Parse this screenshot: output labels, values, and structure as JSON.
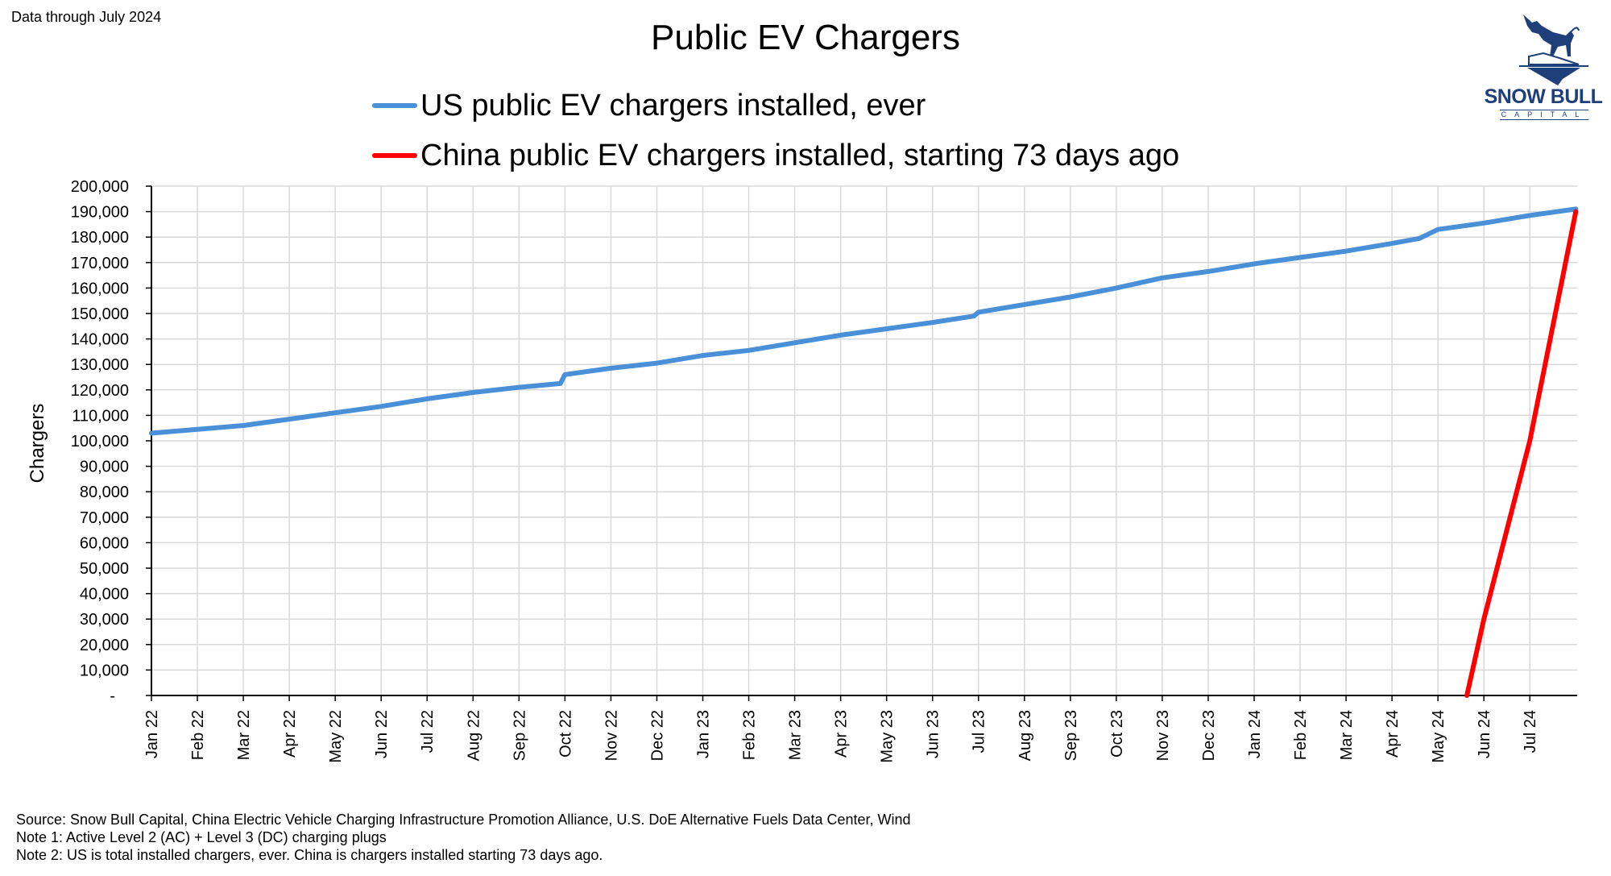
{
  "header": {
    "note": "Data through July 2024",
    "logo_name": "SNOW BULL",
    "logo_sub": "CAPITAL"
  },
  "footer": {
    "source": "Source: Snow Bull Capital, China Electric Vehicle Charging Infrastructure Promotion Alliance, U.S. DoE Alternative Fuels Data Center, Wind",
    "note1": "Note 1: Active Level 2 (AC) + Level 3 (DC) charging plugs",
    "note2": "Note 2: US is total installed chargers, ever. China is chargers installed starting 73 days ago."
  },
  "colors": {
    "us": "#4a90d9",
    "china": "#ff0000",
    "grid": "#d9d9d9",
    "logo": "#1f3f7a"
  },
  "chart_data": {
    "type": "line",
    "title": "Public EV Chargers",
    "xlabel": "",
    "ylabel": "Chargers",
    "ylim": [
      0,
      200000
    ],
    "yticks": [
      0,
      10000,
      20000,
      30000,
      40000,
      50000,
      60000,
      70000,
      80000,
      90000,
      100000,
      110000,
      120000,
      130000,
      140000,
      150000,
      160000,
      170000,
      180000,
      190000,
      200000
    ],
    "ytick_labels": [
      "-",
      "10,000",
      "20,000",
      "30,000",
      "40,000",
      "50,000",
      "60,000",
      "70,000",
      "80,000",
      "90,000",
      "100,000",
      "110,000",
      "120,000",
      "130,000",
      "140,000",
      "150,000",
      "160,000",
      "170,000",
      "180,000",
      "190,000",
      "200,000"
    ],
    "x_unit": "months since Jan 2022",
    "xlim": [
      0,
      31
    ],
    "categories": [
      "Jan 22",
      "Feb 22",
      "Mar 22",
      "Apr 22",
      "May 22",
      "Jun 22",
      "Jul 22",
      "Aug 22",
      "Sep 22",
      "Oct 22",
      "Nov 22",
      "Dec 22",
      "Jan 23",
      "Feb 23",
      "Mar 23",
      "Apr 23",
      "May 23",
      "Jun 23",
      "Jul 23",
      "Aug 23",
      "Sep 23",
      "Oct 23",
      "Nov 23",
      "Dec 23",
      "Jan 24",
      "Feb 24",
      "Mar 24",
      "Apr 24",
      "May 24",
      "Jun 24",
      "Jul 24"
    ],
    "grid": true,
    "legend": "top-center",
    "series": [
      {
        "name": "US public EV chargers installed, ever",
        "color": "#4a90d9",
        "x": [
          0,
          1,
          2,
          3,
          4,
          5,
          6,
          7,
          8,
          8.9,
          9.0,
          10,
          11,
          12,
          13,
          14,
          15,
          16,
          17,
          17.9,
          18.0,
          19,
          20,
          21,
          22,
          23,
          24,
          25,
          26,
          27,
          27.6,
          28,
          29,
          30,
          31
        ],
        "values": [
          103000,
          104500,
          106000,
          108500,
          111000,
          113500,
          116500,
          119000,
          121000,
          122500,
          126000,
          128500,
          130500,
          133500,
          135500,
          138500,
          141500,
          144000,
          146500,
          149000,
          150500,
          153500,
          156500,
          160000,
          164000,
          166500,
          169500,
          172000,
          174500,
          177500,
          179500,
          183000,
          185500,
          188500,
          191000
        ]
      },
      {
        "name": "China public EV chargers installed, starting 73 days ago",
        "color": "#ff0000",
        "x": [
          28.63,
          29,
          30,
          31
        ],
        "values": [
          0,
          30000,
          100000,
          190000
        ]
      }
    ]
  }
}
